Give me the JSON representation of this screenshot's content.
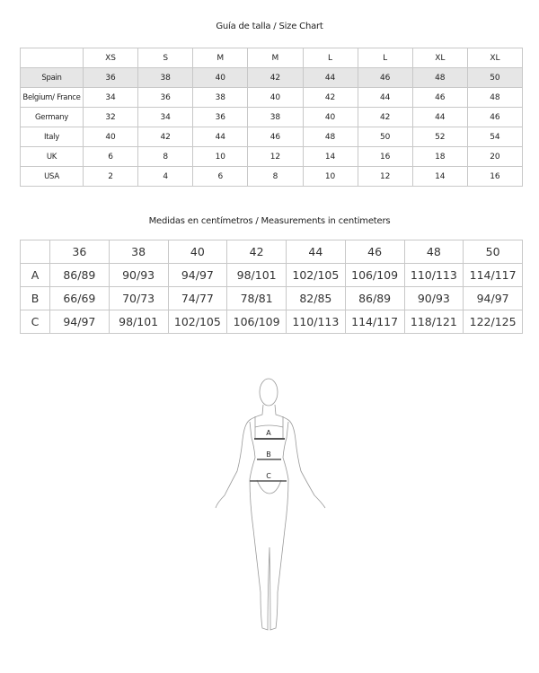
{
  "size_chart": {
    "title": "Guía de talla / Size Chart",
    "header": [
      "",
      "XS",
      "S",
      "M",
      "M",
      "L",
      "L",
      "XL",
      "XL"
    ],
    "rows": [
      {
        "label": "Spain",
        "values": [
          "36",
          "38",
          "40",
          "42",
          "44",
          "46",
          "48",
          "50"
        ]
      },
      {
        "label": "Belgium/ France",
        "values": [
          "34",
          "36",
          "38",
          "40",
          "42",
          "44",
          "46",
          "48"
        ]
      },
      {
        "label": "Germany",
        "values": [
          "32",
          "34",
          "36",
          "38",
          "40",
          "42",
          "44",
          "46"
        ]
      },
      {
        "label": "Italy",
        "values": [
          "40",
          "42",
          "44",
          "46",
          "48",
          "50",
          "52",
          "54"
        ]
      },
      {
        "label": "UK",
        "values": [
          "6",
          "8",
          "10",
          "12",
          "14",
          "16",
          "18",
          "20"
        ]
      },
      {
        "label": "USA",
        "values": [
          "2",
          "4",
          "6",
          "8",
          "10",
          "12",
          "14",
          "16"
        ]
      }
    ],
    "highlight_color": "#e6e6e6"
  },
  "measurements": {
    "title": "Medidas en centímetros / Measurements in centimeters",
    "header": [
      "",
      "36",
      "38",
      "40",
      "42",
      "44",
      "46",
      "48",
      "50"
    ],
    "rows": [
      {
        "label": "A",
        "values": [
          "86/89",
          "90/93",
          "94/97",
          "98/101",
          "102/105",
          "106/109",
          "110/113",
          "114/117"
        ]
      },
      {
        "label": "B",
        "values": [
          "66/69",
          "70/73",
          "74/77",
          "78/81",
          "82/85",
          "86/89",
          "90/93",
          "94/97"
        ]
      },
      {
        "label": "C",
        "values": [
          "94/97",
          "98/101",
          "102/105",
          "106/109",
          "110/113",
          "114/117",
          "118/121",
          "122/125"
        ]
      }
    ]
  },
  "figure": {
    "labels": {
      "a": "A",
      "b": "B",
      "c": "C"
    }
  }
}
